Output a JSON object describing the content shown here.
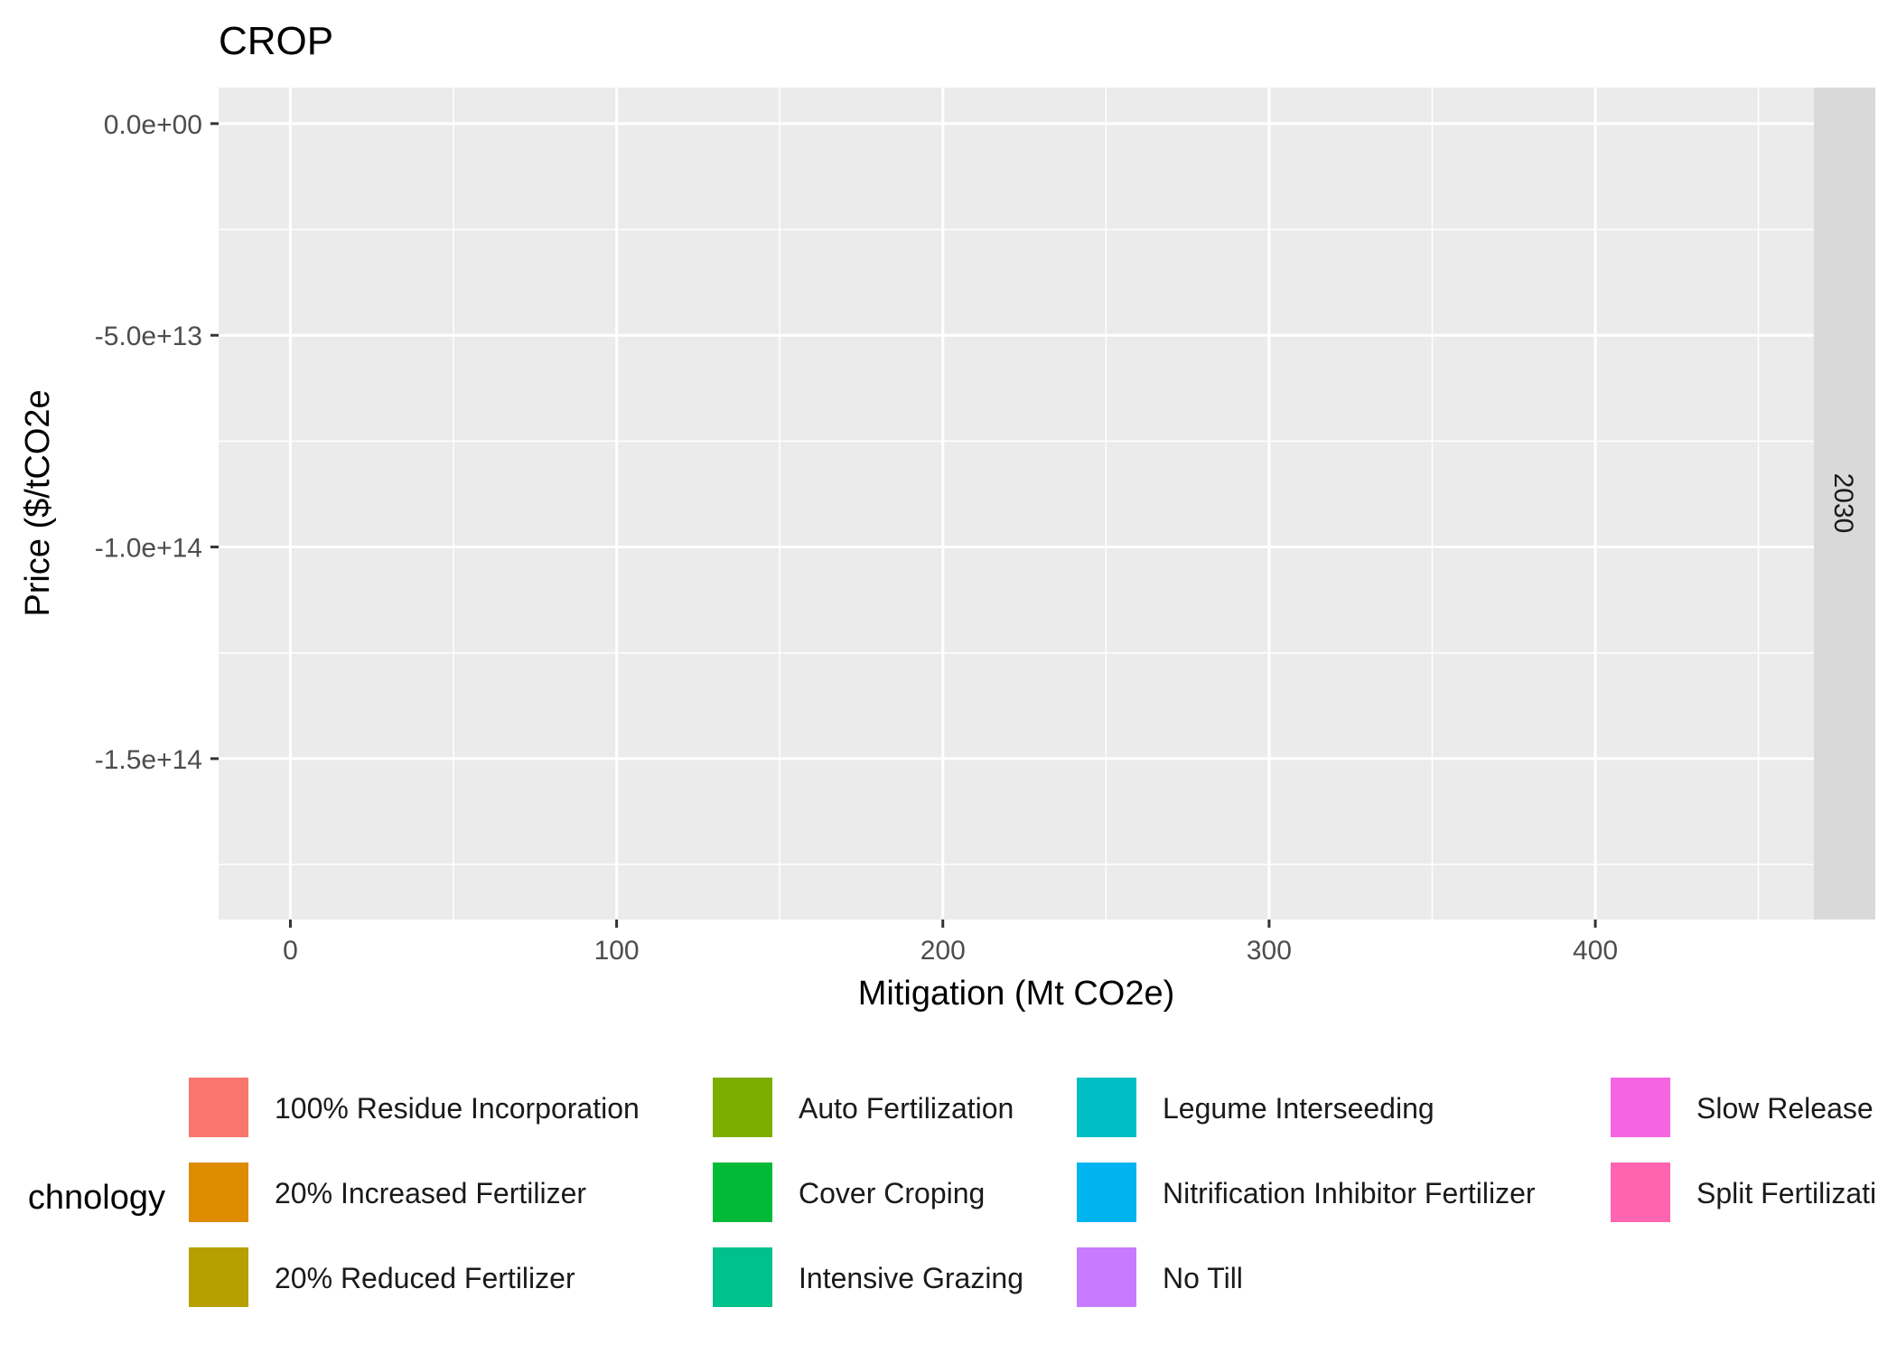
{
  "chart_data": {
    "type": "bar",
    "title": "CROP",
    "xlabel": "Mitigation (Mt CO2e)",
    "ylabel": "Price ($/tCO2e",
    "facet_label": "2030",
    "xlim": [
      -22,
      467
    ],
    "ylim": [
      -188000000000000.0,
      8500000000000.0
    ],
    "x_ticks": [
      0,
      100,
      200,
      300,
      400
    ],
    "x_tick_labels": [
      "0",
      "100",
      "200",
      "300",
      "400"
    ],
    "x_minor_ticks": [
      50,
      150,
      250,
      350,
      450
    ],
    "y_ticks": [
      0,
      -50000000000000.0,
      -100000000000000.0,
      -150000000000000.0
    ],
    "y_tick_labels": [
      "0.0e+00",
      "-5.0e+13",
      "-1.0e+14",
      "-1.5e+14"
    ],
    "y_minor_ticks": [
      -25000000000000.0,
      -75000000000000.0,
      -125000000000000.0,
      -175000000000000.0
    ],
    "grid": true,
    "legend_position": "bottom",
    "legend_title": "chnology",
    "legend": [
      {
        "label": "100% Residue Incorporation",
        "color": "#F8766D"
      },
      {
        "label": "20% Increased Fertilizer",
        "color": "#DE8C00"
      },
      {
        "label": "20% Reduced Fertilizer",
        "color": "#B79F00"
      },
      {
        "label": "Auto Fertilization",
        "color": "#7CAE00"
      },
      {
        "label": "Cover Croping",
        "color": "#00BA38"
      },
      {
        "label": "Intensive Grazing",
        "color": "#00C08B"
      },
      {
        "label": "Legume Interseeding",
        "color": "#00BFC4"
      },
      {
        "label": "Nitrification Inhibitor Fertilizer",
        "color": "#00B4F0"
      },
      {
        "label": "No Till",
        "color": "#C77CFF"
      },
      {
        "label": "Slow Release",
        "color": "#F564E3"
      },
      {
        "label": "Split Fertilizati",
        "color": "#FF64B0"
      }
    ],
    "series": []
  }
}
